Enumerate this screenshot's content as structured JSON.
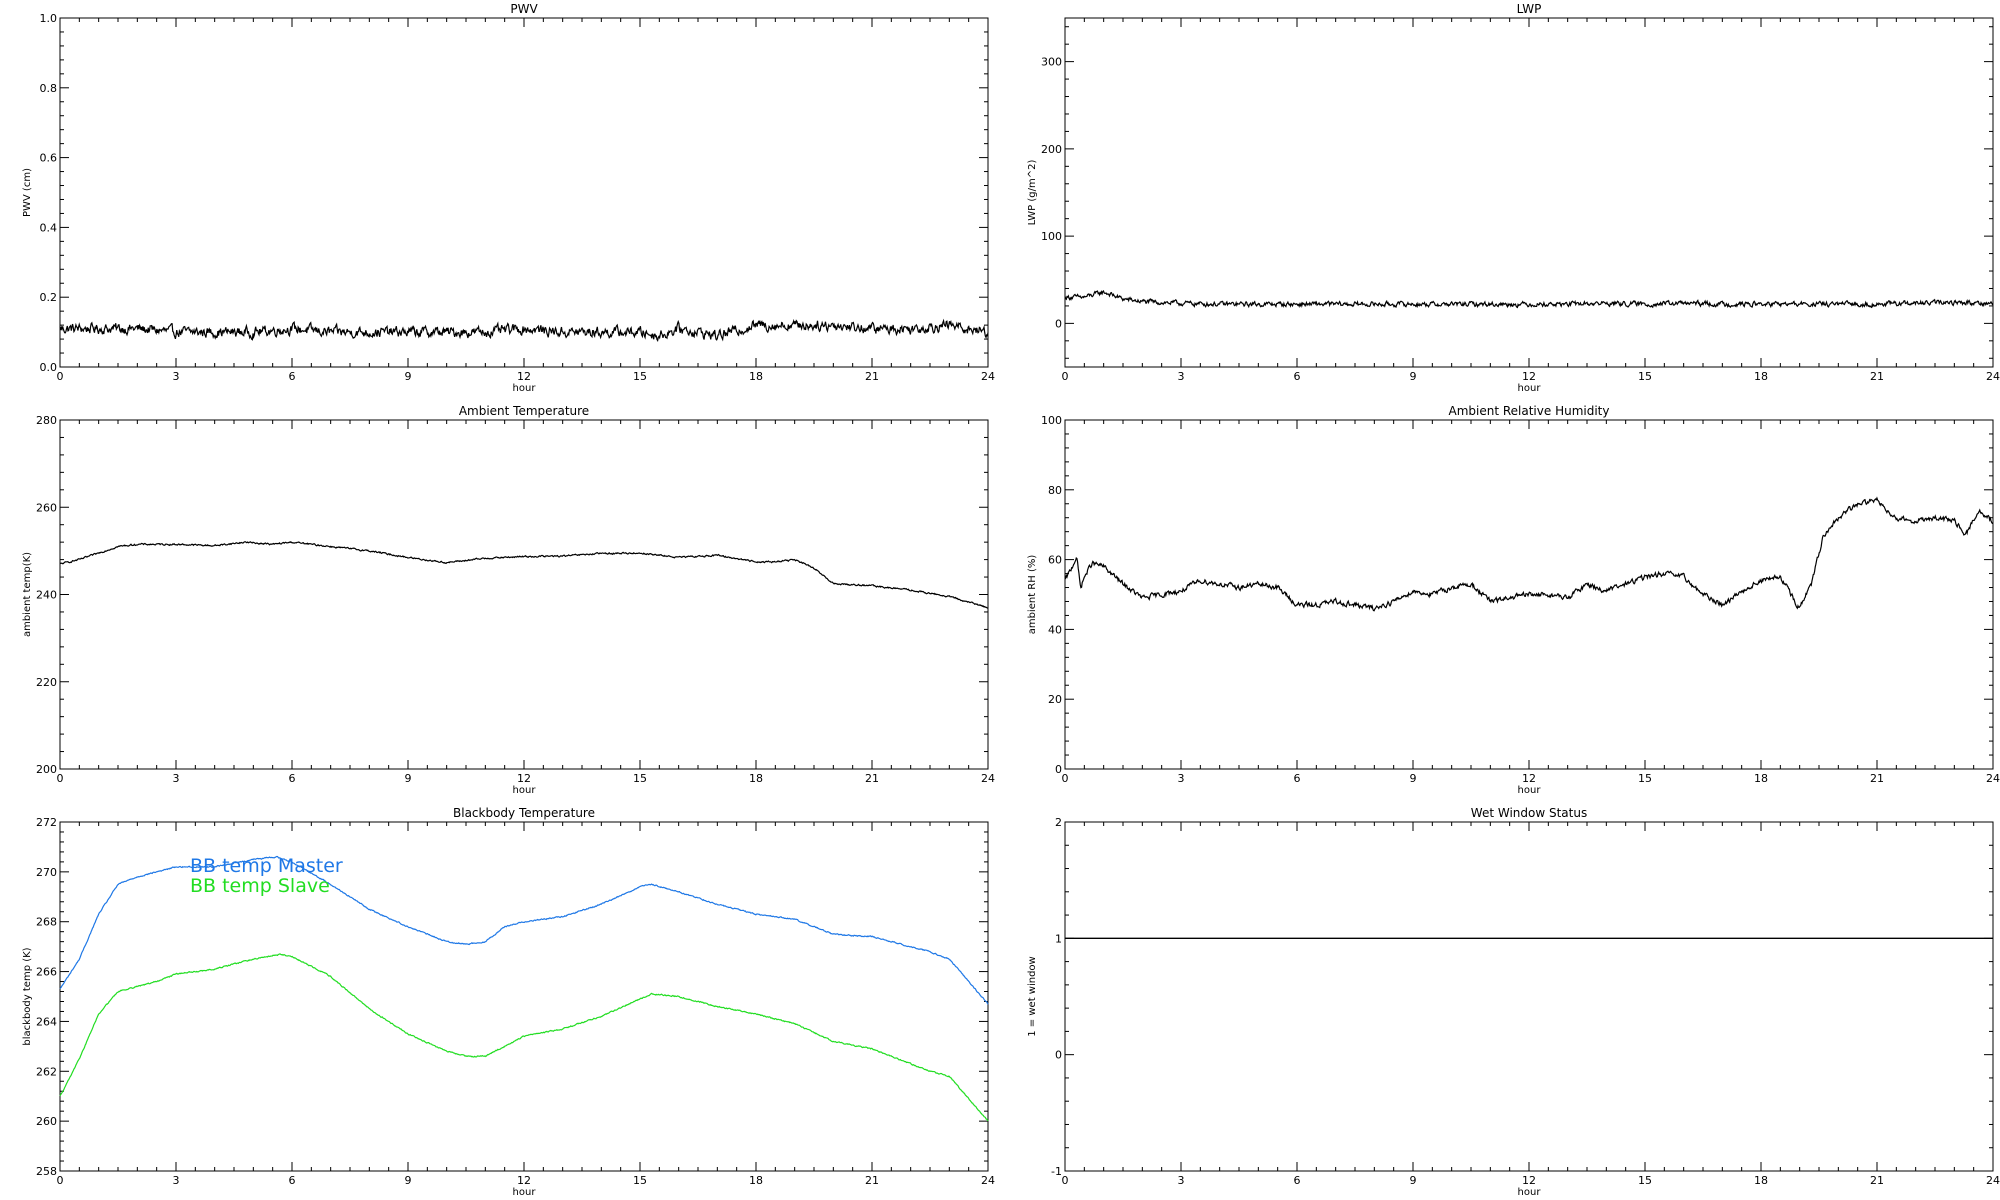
{
  "figure": {
    "background": "#ffffff"
  },
  "chart_data": [
    {
      "id": "pwv",
      "type": "line",
      "title": "PWV",
      "xlabel": "hour",
      "ylabel": "PWV (cm)",
      "xlim": [
        0,
        24
      ],
      "ylim": [
        0,
        1.0
      ],
      "xticks": [
        0,
        3,
        6,
        9,
        12,
        15,
        18,
        21,
        24
      ],
      "yticks": [
        0.0,
        0.2,
        0.4,
        0.6,
        0.8,
        1.0
      ],
      "ytick_labels": [
        "0.0",
        "0.2",
        "0.4",
        "0.6",
        "0.8",
        "1.0"
      ],
      "grid": false,
      "series": [
        {
          "color": "#000000",
          "noise": 0.012,
          "x": [
            0,
            1,
            2,
            3,
            4,
            5,
            6,
            7,
            8,
            9,
            10,
            11,
            12,
            13,
            14,
            15,
            15.5,
            16,
            16.5,
            17,
            18,
            19,
            20,
            21,
            22,
            23,
            24
          ],
          "y": [
            0.11,
            0.11,
            0.11,
            0.1,
            0.1,
            0.1,
            0.11,
            0.1,
            0.1,
            0.1,
            0.1,
            0.1,
            0.11,
            0.1,
            0.1,
            0.1,
            0.09,
            0.11,
            0.1,
            0.09,
            0.12,
            0.12,
            0.12,
            0.11,
            0.11,
            0.12,
            0.1
          ]
        }
      ]
    },
    {
      "id": "lwp",
      "type": "line",
      "title": "LWP",
      "xlabel": "hour",
      "ylabel": "LWP (g/m^2)",
      "xlim": [
        0,
        24
      ],
      "ylim": [
        -50,
        350
      ],
      "xticks": [
        0,
        3,
        6,
        9,
        12,
        15,
        18,
        21,
        24
      ],
      "yticks": [
        0,
        100,
        200,
        300
      ],
      "ytick_labels": [
        "0",
        "100",
        "200",
        "300"
      ],
      "grid": false,
      "series": [
        {
          "color": "#000000",
          "noise": 2.2,
          "x": [
            0,
            0.5,
            1.0,
            1.5,
            2,
            3,
            4,
            5,
            6,
            7,
            8,
            9,
            10,
            11,
            12,
            13,
            14,
            15,
            16,
            17,
            18,
            19,
            20,
            21,
            22,
            23,
            24
          ],
          "y": [
            30,
            30,
            36,
            28,
            25,
            23,
            22,
            22,
            22,
            22,
            22,
            22,
            22,
            22,
            22,
            22,
            23,
            22,
            23,
            22,
            22,
            22,
            22,
            22,
            23,
            24,
            23
          ]
        }
      ]
    },
    {
      "id": "ambient-temperature",
      "type": "line",
      "title": "Ambient Temperature",
      "xlabel": "hour",
      "ylabel": "ambient temp(K)",
      "xlim": [
        0,
        24
      ],
      "ylim": [
        200,
        280
      ],
      "xticks": [
        0,
        3,
        6,
        9,
        12,
        15,
        18,
        21,
        24
      ],
      "yticks": [
        200,
        220,
        240,
        260,
        280
      ],
      "ytick_labels": [
        "200",
        "220",
        "240",
        "260",
        "280"
      ],
      "grid": false,
      "series": [
        {
          "color": "#000000",
          "noise": 0.15,
          "x": [
            0,
            0.5,
            1,
            1.5,
            2,
            3,
            4,
            4.8,
            5.5,
            6,
            7,
            8,
            9,
            10,
            11,
            12,
            13,
            14,
            15,
            16,
            17,
            18,
            18.5,
            19,
            19.5,
            20,
            21,
            22,
            23,
            24
          ],
          "y": [
            247,
            248,
            249.5,
            251,
            251.5,
            251.5,
            251.2,
            252,
            251.5,
            252,
            251,
            250,
            248.5,
            247.3,
            248.3,
            248.7,
            248.8,
            249.4,
            249.5,
            248.5,
            249,
            247.5,
            247.5,
            248,
            246,
            242.5,
            242,
            241,
            239.5,
            237
          ]
        }
      ]
    },
    {
      "id": "ambient-relative-humidity",
      "type": "line",
      "title": "Ambient Relative Humidity",
      "xlabel": "hour",
      "ylabel": "ambient RH (%)",
      "xlim": [
        0,
        24
      ],
      "ylim": [
        0,
        100
      ],
      "xticks": [
        0,
        3,
        6,
        9,
        12,
        15,
        18,
        21,
        24
      ],
      "yticks": [
        0,
        20,
        40,
        60,
        80,
        100
      ],
      "ytick_labels": [
        "0",
        "20",
        "40",
        "60",
        "80",
        "100"
      ],
      "grid": false,
      "series": [
        {
          "color": "#000000",
          "noise": 0.6,
          "x": [
            0,
            0.15,
            0.3,
            0.4,
            0.5,
            0.7,
            1,
            1.5,
            2,
            2.5,
            3,
            3.5,
            4,
            4.5,
            5,
            5.5,
            6,
            6.5,
            7,
            7.5,
            8,
            8.5,
            9,
            9.5,
            10,
            10.5,
            11,
            11.5,
            12,
            12.5,
            13,
            13.5,
            14,
            14.5,
            15,
            15.5,
            16,
            16.5,
            17,
            17.5,
            18,
            18.5,
            19,
            19.3,
            19.6,
            20,
            20.5,
            21,
            21.5,
            22,
            22.5,
            23,
            23.3,
            23.6,
            24
          ],
          "y": [
            54,
            57,
            61,
            52,
            55,
            59,
            58,
            53,
            49,
            50,
            51,
            54,
            53,
            52,
            53,
            52,
            47,
            47,
            48,
            47,
            46,
            48,
            51,
            50,
            52,
            53,
            48,
            49,
            50,
            50,
            49,
            53,
            51,
            53,
            55,
            56,
            55,
            50,
            47,
            51,
            54,
            55,
            46,
            53,
            66,
            72,
            76,
            77,
            72,
            71,
            72,
            71,
            67,
            74,
            71
          ]
        }
      ]
    },
    {
      "id": "blackbody-temperature",
      "type": "line",
      "title": "Blackbody Temperature",
      "xlabel": "hour",
      "ylabel": "blackbody temp (K)",
      "xlim": [
        0,
        24
      ],
      "ylim": [
        258,
        272
      ],
      "xticks": [
        0,
        3,
        6,
        9,
        12,
        15,
        18,
        21,
        24
      ],
      "yticks": [
        258,
        260,
        262,
        264,
        266,
        268,
        270,
        272
      ],
      "ytick_labels": [
        "258",
        "260",
        "262",
        "264",
        "266",
        "268",
        "270",
        "272"
      ],
      "grid": false,
      "legend": "top-left",
      "series": [
        {
          "name": "BB temp Master",
          "color": "#1f78e6",
          "noise": 0.02,
          "x": [
            0,
            0.5,
            1,
            1.5,
            2,
            2.5,
            3,
            4,
            5,
            5.6,
            6,
            7,
            8,
            9,
            10,
            10.5,
            11,
            11.5,
            12,
            13,
            14,
            15,
            15.3,
            16,
            17,
            18,
            19,
            20,
            21,
            22,
            22.5,
            23,
            24
          ],
          "y": [
            265.3,
            266.5,
            268.3,
            269.5,
            269.8,
            270,
            270.2,
            270.2,
            270.5,
            270.6,
            270.4,
            269.5,
            268.5,
            267.8,
            267.2,
            267.1,
            267.2,
            267.8,
            268,
            268.2,
            268.7,
            269.4,
            269.5,
            269.2,
            268.7,
            268.3,
            268.1,
            267.5,
            267.4,
            267,
            266.8,
            266.5,
            264.7
          ]
        },
        {
          "name": "BB temp Slave",
          "color": "#22dd22",
          "noise": 0.02,
          "x": [
            0,
            0.5,
            1,
            1.5,
            2,
            2.5,
            3,
            3.5,
            4,
            4.5,
            5,
            5.7,
            6,
            7,
            8,
            9,
            10,
            10.5,
            11,
            11.5,
            12,
            13,
            14,
            15,
            15.3,
            16,
            17,
            18,
            19,
            20,
            21,
            22,
            22.5,
            23,
            24
          ],
          "y": [
            261,
            262.5,
            264.3,
            265.2,
            265.4,
            265.6,
            265.9,
            266,
            266.1,
            266.3,
            266.5,
            266.7,
            266.6,
            265.8,
            264.5,
            263.5,
            262.8,
            262.6,
            262.6,
            263,
            263.4,
            263.7,
            264.2,
            264.9,
            265.1,
            265,
            264.6,
            264.3,
            263.9,
            263.2,
            262.9,
            262.3,
            262,
            261.8,
            260
          ]
        }
      ]
    },
    {
      "id": "wet-window-status",
      "type": "line",
      "title": "Wet Window Status",
      "xlabel": "hour",
      "ylabel": "1 = wet window",
      "xlim": [
        0,
        24
      ],
      "ylim": [
        -1,
        2
      ],
      "xticks": [
        0,
        3,
        6,
        9,
        12,
        15,
        18,
        21,
        24
      ],
      "yticks": [
        -1,
        0,
        1,
        2
      ],
      "ytick_labels": [
        "-1",
        "0",
        "1",
        "2"
      ],
      "grid": false,
      "series": [
        {
          "color": "#000000",
          "noise": 0,
          "x": [
            0,
            24
          ],
          "y": [
            1,
            1
          ]
        }
      ]
    }
  ]
}
